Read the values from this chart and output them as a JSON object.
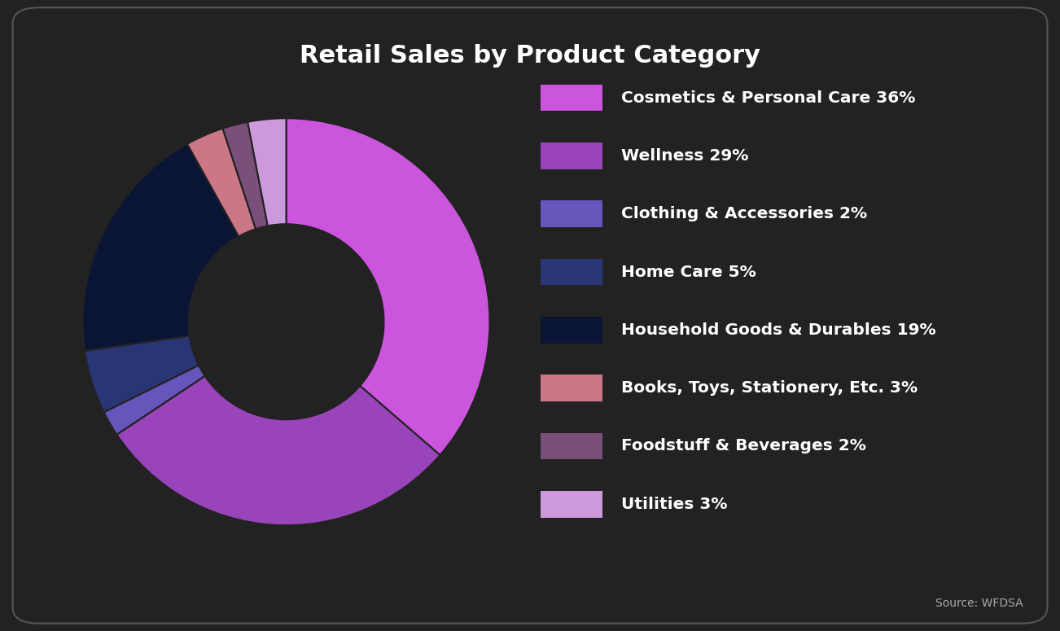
{
  "title": "Retail Sales by Product Category",
  "background_color": "#222222",
  "title_color": "#ffffff",
  "source_text": "Source: WFDSA",
  "categories": [
    "Cosmetics & Personal Care 36%",
    "Wellness 29%",
    "Clothing & Accessories 2%",
    "Home Care 5%",
    "Household Goods & Durables 19%",
    "Books, Toys, Stationery, Etc. 3%",
    "Foodstuff & Beverages 2%",
    "Utilities 3%"
  ],
  "values": [
    36,
    29,
    2,
    5,
    19,
    3,
    2,
    3
  ],
  "colors": [
    "#cc55dd",
    "#9944bb",
    "#6655bb",
    "#2a3575",
    "#0a1535",
    "#cc7788",
    "#7a4f7a",
    "#cc99dd"
  ],
  "legend_text_color": "#ffffff",
  "legend_fontsize": 14.5,
  "title_fontsize": 22
}
